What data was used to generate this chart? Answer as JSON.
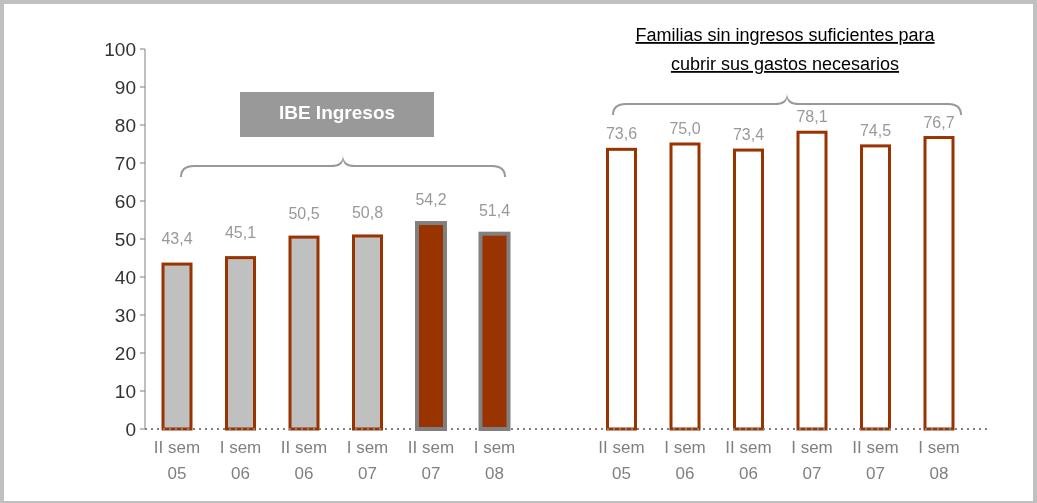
{
  "chart_data": {
    "type": "bar",
    "categories": [
      "II sem 05",
      "I sem 06",
      "II sem 06",
      "I sem 07",
      "II sem 07",
      "I sem 08",
      null,
      "II sem 05",
      "I sem 06",
      "II sem 06",
      "I sem 07",
      "II sem 07",
      "I sem 08"
    ],
    "values": [
      43.4,
      45.1,
      50.5,
      50.8,
      54.2,
      51.4,
      null,
      73.6,
      75.0,
      73.4,
      78.1,
      74.5,
      76.7
    ],
    "value_labels": [
      "43,4",
      "45,1",
      "50,5",
      "50,8",
      "54,2",
      "51,4",
      null,
      "73,6",
      "75,0",
      "73,4",
      "78,1",
      "74,5",
      "76,7"
    ],
    "colors": [
      "#c0c0c0",
      "#c0c0c0",
      "#c0c0c0",
      "#c0c0c0",
      "#993300",
      "#993300",
      null,
      "#ffffff",
      "#ffffff",
      "#ffffff",
      "#ffffff",
      "#ffffff",
      "#ffffff"
    ],
    "ylim": [
      0,
      100
    ],
    "yticks": [
      0,
      10,
      20,
      30,
      40,
      50,
      60,
      70,
      80,
      90,
      100
    ],
    "grid": false,
    "annotations": [
      "IBE Ingresos",
      "Familias sin ingresos suficientes para cubrir sus gastos necesarios"
    ]
  }
}
